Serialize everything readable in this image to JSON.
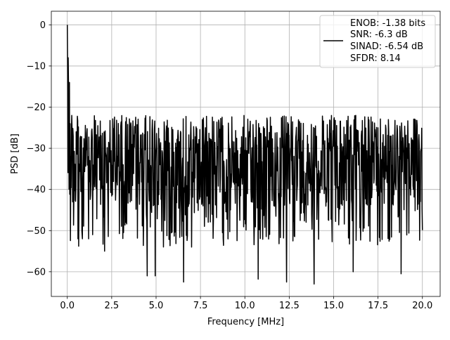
{
  "chart_data": {
    "type": "line",
    "title": "",
    "xlabel": "Frequency [MHz]",
    "ylabel": "PSD [dB]",
    "xlim": [
      -0.9,
      21.0
    ],
    "ylim": [
      -66.0,
      3.3
    ],
    "xticks": [
      0.0,
      2.5,
      5.0,
      7.5,
      10.0,
      12.5,
      15.0,
      17.5,
      20.0
    ],
    "xtick_labels": [
      "0.0",
      "2.5",
      "5.0",
      "7.5",
      "10.0",
      "12.5",
      "15.0",
      "17.5",
      "20.0"
    ],
    "yticks": [
      0,
      -10,
      -20,
      -30,
      -40,
      -50,
      -60
    ],
    "ytick_labels": [
      "0",
      "−10",
      "−20",
      "−30",
      "−40",
      "−50",
      "−60"
    ],
    "grid": true,
    "line_color": "#000000",
    "legend": {
      "placement": "top-right",
      "entries": [
        "ENOB: -1.38 bits",
        "SNR: -6.3 dB",
        "SINAD: -6.54 dB",
        "SFDR: 8.14"
      ]
    },
    "series": [
      {
        "x_range": [
          0.0,
          20.0
        ],
        "n_points": 1024,
        "anchor_points": [
          [
            0.0,
            0.0
          ],
          [
            0.02,
            -12.0
          ],
          [
            0.05,
            -8.0
          ],
          [
            0.08,
            -19.0
          ],
          [
            0.12,
            -14.0
          ],
          [
            0.16,
            -24.0
          ],
          [
            0.2,
            -32.0
          ],
          [
            0.25,
            -22.0
          ],
          [
            0.3,
            -43.0
          ],
          [
            0.5,
            -26.0
          ],
          [
            0.6,
            -52.0
          ],
          [
            0.64,
            -53.8
          ],
          [
            0.85,
            -52.0
          ],
          [
            1.2,
            -52.0
          ],
          [
            2.1,
            -55.0
          ],
          [
            4.5,
            -61.0
          ],
          [
            4.95,
            -61.0
          ],
          [
            6.55,
            -62.5
          ],
          [
            7.0,
            -54.0
          ],
          [
            10.75,
            -61.8
          ],
          [
            12.35,
            -62.5
          ],
          [
            13.9,
            -63.0
          ],
          [
            16.1,
            -60.0
          ],
          [
            18.8,
            -60.5
          ]
        ],
        "typical_upper": -22.0,
        "typical_lower": -44.0
      }
    ]
  }
}
